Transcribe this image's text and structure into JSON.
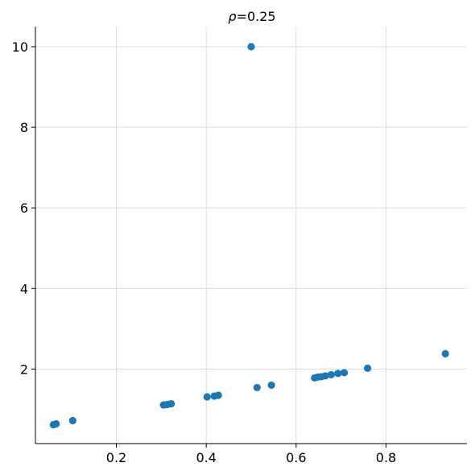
{
  "chart_data": {
    "type": "scatter",
    "title_prefix": "ρ",
    "title_suffix": "=0.25",
    "xlabel": "",
    "ylabel": "",
    "xlim": [
      0.02,
      0.98
    ],
    "ylim": [
      0.15,
      10.5
    ],
    "xticks": [
      0.2,
      0.4,
      0.6,
      0.8
    ],
    "xtick_labels": [
      "0.2",
      "0.4",
      "0.6",
      "0.8"
    ],
    "yticks": [
      2,
      4,
      6,
      8,
      10
    ],
    "ytick_labels": [
      "2",
      "4",
      "6",
      "8",
      "10"
    ],
    "grid": true,
    "point_color": "#1f77b4",
    "points": [
      {
        "x": 0.06,
        "y": 0.62
      },
      {
        "x": 0.066,
        "y": 0.64
      },
      {
        "x": 0.103,
        "y": 0.72
      },
      {
        "x": 0.305,
        "y": 1.11
      },
      {
        "x": 0.313,
        "y": 1.12
      },
      {
        "x": 0.322,
        "y": 1.14
      },
      {
        "x": 0.402,
        "y": 1.31
      },
      {
        "x": 0.418,
        "y": 1.33
      },
      {
        "x": 0.427,
        "y": 1.35
      },
      {
        "x": 0.5,
        "y": 10.0
      },
      {
        "x": 0.513,
        "y": 1.54
      },
      {
        "x": 0.545,
        "y": 1.6
      },
      {
        "x": 0.641,
        "y": 1.78
      },
      {
        "x": 0.648,
        "y": 1.8
      },
      {
        "x": 0.656,
        "y": 1.81
      },
      {
        "x": 0.665,
        "y": 1.83
      },
      {
        "x": 0.678,
        "y": 1.86
      },
      {
        "x": 0.693,
        "y": 1.89
      },
      {
        "x": 0.707,
        "y": 1.91
      },
      {
        "x": 0.759,
        "y": 2.02
      },
      {
        "x": 0.932,
        "y": 2.38
      }
    ]
  }
}
